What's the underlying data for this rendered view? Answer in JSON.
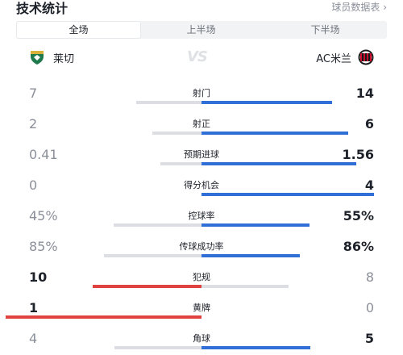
{
  "header": {
    "title": "技术统计",
    "player_link": "球员数据表 ›"
  },
  "tabs": [
    {
      "label": "全场",
      "active": true
    },
    {
      "label": "上半场",
      "active": false
    },
    {
      "label": "下半场",
      "active": false
    }
  ],
  "teams": {
    "home": {
      "name": "莱切"
    },
    "away": {
      "name": "AC米兰"
    },
    "vs": "VS"
  },
  "colors": {
    "away_bar": "#2f6fd6",
    "home_bar": "#e0433f",
    "track": "#e8eaee",
    "loser_fill": "#dcdee3"
  },
  "stats": [
    {
      "label": "射门",
      "home": "7",
      "away": "14",
      "home_num": 7,
      "away_num": 14,
      "leader": "away"
    },
    {
      "label": "射正",
      "home": "2",
      "away": "6",
      "home_num": 2,
      "away_num": 6,
      "leader": "away"
    },
    {
      "label": "预期进球",
      "home": "0.41",
      "away": "1.56",
      "home_num": 0.41,
      "away_num": 1.56,
      "leader": "away"
    },
    {
      "label": "得分机会",
      "home": "0",
      "away": "4",
      "home_num": 0,
      "away_num": 4,
      "leader": "away"
    },
    {
      "label": "控球率",
      "home": "45%",
      "away": "55%",
      "home_num": 45,
      "away_num": 55,
      "leader": "away"
    },
    {
      "label": "传球成功率",
      "home": "85%",
      "away": "86%",
      "home_num": 85,
      "away_num": 86,
      "leader": "away"
    },
    {
      "label": "犯规",
      "home": "10",
      "away": "8",
      "home_num": 10,
      "away_num": 8,
      "leader": "home"
    },
    {
      "label": "黄牌",
      "home": "1",
      "away": "0",
      "home_num": 1,
      "away_num": 0,
      "leader": "home"
    },
    {
      "label": "角球",
      "home": "4",
      "away": "5",
      "home_num": 4,
      "away_num": 5,
      "leader": "away"
    }
  ]
}
